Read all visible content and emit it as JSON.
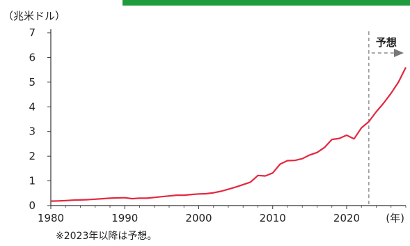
{
  "unit_label": "（兆米ドル）",
  "footnote": "※2023年以降は予想。",
  "chart_data": {
    "type": "line",
    "xlabel": "(年)",
    "ylabel": "（兆米ドル）",
    "xlim": [
      1980,
      2028
    ],
    "ylim": [
      0,
      7
    ],
    "x_ticks": [
      1980,
      1990,
      2000,
      2010,
      2020
    ],
    "y_ticks": [
      0,
      1,
      2,
      3,
      4,
      5,
      6,
      7
    ],
    "grid": false,
    "forecast_start": 2023,
    "forecast_label": "予想",
    "series": [
      {
        "color": "#e3283f",
        "x": [
          1980,
          1981,
          1982,
          1983,
          1984,
          1985,
          1986,
          1987,
          1988,
          1989,
          1990,
          1991,
          1992,
          1993,
          1994,
          1995,
          1996,
          1997,
          1998,
          1999,
          2000,
          2001,
          2002,
          2003,
          2004,
          2005,
          2006,
          2007,
          2008,
          2009,
          2010,
          2011,
          2012,
          2013,
          2014,
          2015,
          2016,
          2017,
          2018,
          2019,
          2020,
          2021,
          2022,
          2023,
          2024,
          2025,
          2026,
          2027,
          2028
        ],
        "values": [
          0.18,
          0.19,
          0.2,
          0.22,
          0.23,
          0.24,
          0.26,
          0.28,
          0.3,
          0.31,
          0.32,
          0.28,
          0.3,
          0.3,
          0.33,
          0.36,
          0.39,
          0.42,
          0.42,
          0.45,
          0.47,
          0.48,
          0.52,
          0.58,
          0.66,
          0.75,
          0.85,
          0.95,
          1.22,
          1.2,
          1.32,
          1.68,
          1.82,
          1.83,
          1.9,
          2.05,
          2.15,
          2.35,
          2.68,
          2.72,
          2.85,
          2.7,
          3.15,
          3.4,
          3.8,
          4.15,
          4.55,
          5.0,
          5.6
        ]
      }
    ]
  }
}
